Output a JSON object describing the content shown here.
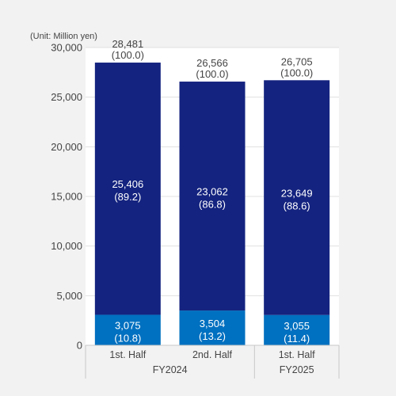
{
  "chart_data": {
    "type": "bar",
    "stacked": true,
    "unit_label": "(Unit: Million yen)",
    "ylim": [
      0,
      30000
    ],
    "yticks": [
      "0",
      "5,000",
      "10,000",
      "15,000",
      "20,000",
      "25,000",
      "30,000"
    ],
    "ytick_values": [
      0,
      5000,
      10000,
      15000,
      20000,
      25000,
      30000
    ],
    "grid": true,
    "categories": [
      "1st. Half",
      "2nd. Half",
      "1st. Half"
    ],
    "groups": [
      {
        "label": "FY2024",
        "categories": [
          0,
          1
        ]
      },
      {
        "label": "FY2025",
        "categories": [
          2
        ]
      }
    ],
    "series": [
      {
        "values": [
          3075,
          3504,
          3055
        ],
        "value_labels": [
          "3,075",
          "3,504",
          "3,055"
        ],
        "share_labels": [
          "(10.8)",
          "(13.2)",
          "(11.4)"
        ],
        "color": "#0070c0"
      },
      {
        "values": [
          25406,
          23062,
          23649
        ],
        "value_labels": [
          "25,406",
          "23,062",
          "23,649"
        ],
        "share_labels": [
          "(89.2)",
          "(86.8)",
          "(88.6)"
        ],
        "color": "#14237f"
      }
    ],
    "totals": [
      28481,
      26566,
      26705
    ],
    "total_labels": [
      "28,481",
      "26,566",
      "26,705"
    ],
    "total_share_labels": [
      "(100.0)",
      "(100.0)",
      "(100.0)"
    ]
  }
}
